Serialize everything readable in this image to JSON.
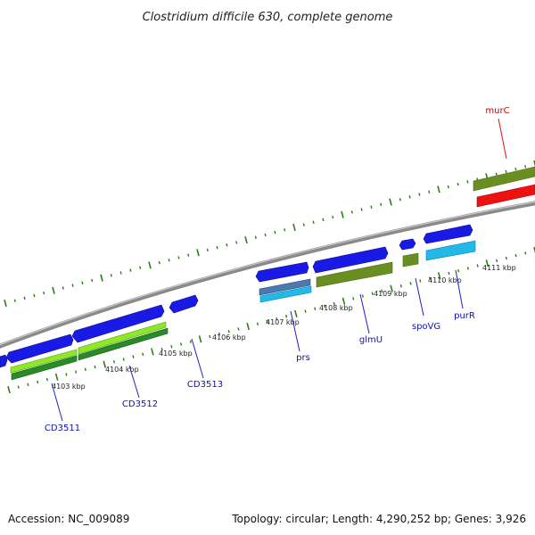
{
  "title": "Clostridium difficile 630, complete genome",
  "footer": {
    "accession": "Accession: NC_009089",
    "topology": "Topology: circular; Length: 4,290,252 bp; Genes: 3,926"
  },
  "colors": {
    "backbone": "#8a8a8a",
    "tick": "#2e7d1a",
    "gene_blue": "#1a1ae6",
    "gene_olive": "#6b8e23",
    "gene_red": "#ee1111",
    "gene_lime": "#8ee82a",
    "gene_cyan": "#22b8e8",
    "gene_steel": "#4a7ab0",
    "label_blue": "#1010b0",
    "label_red": "#cc0000",
    "leader_blue": "#2020c0",
    "leader_red": "#dd1111"
  },
  "kbp_labels": [
    "4103 kbp",
    "4104 kbp",
    "4105 kbp",
    "4106 kbp",
    "4107 kbp",
    "4108 kbp",
    "4109 kbp",
    "4110 kbp",
    "4111 kbp"
  ],
  "gene_labels": {
    "murC": "murC",
    "CD3511": "CD3511",
    "CD3512": "CD3512",
    "CD3513": "CD3513",
    "prs": "prs",
    "glmU": "glmU",
    "spoVG": "spoVG",
    "purR": "purR"
  }
}
